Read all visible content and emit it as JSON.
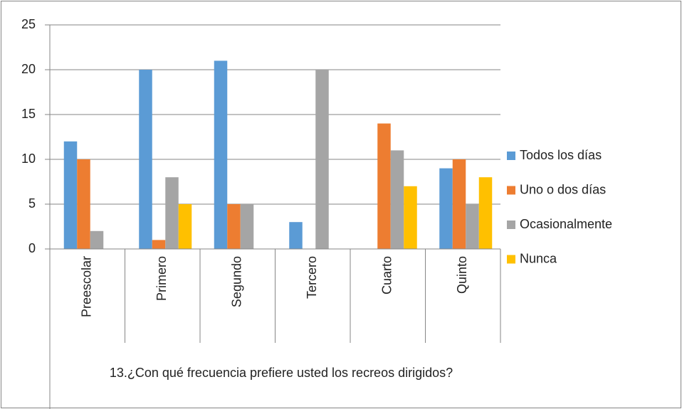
{
  "chart_data": {
    "type": "bar",
    "x_label": "13.¿Con qué frecuencia prefiere usted los recreos dirigidos?",
    "categories": [
      "Preescolar",
      "Primero",
      "Segundo",
      "Tercero",
      "Cuarto",
      "Quinto"
    ],
    "series": [
      {
        "name": "Todos los días",
        "color": "#5b9bd5",
        "values": [
          12,
          20,
          21,
          3,
          0,
          9
        ]
      },
      {
        "name": "Uno o dos días",
        "color": "#ed7d31",
        "values": [
          10,
          1,
          5,
          0,
          14,
          10
        ]
      },
      {
        "name": "Ocasionalmente",
        "color": "#a5a5a5",
        "values": [
          2,
          8,
          5,
          20,
          11,
          5
        ]
      },
      {
        "name": "Nunca",
        "color": "#ffc000",
        "values": [
          0,
          5,
          0,
          0,
          7,
          8
        ]
      }
    ],
    "ylim": [
      0,
      25
    ],
    "yticks": [
      0,
      5,
      10,
      15,
      20,
      25
    ],
    "grid": true,
    "legend": "right"
  }
}
